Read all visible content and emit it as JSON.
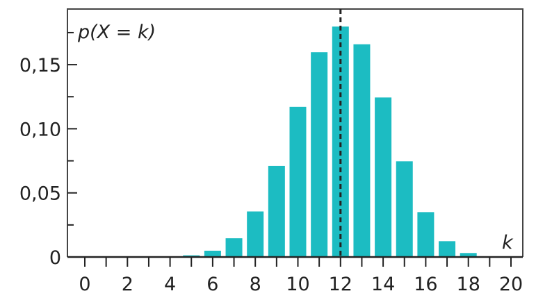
{
  "chart_data": {
    "type": "bar",
    "title": "",
    "ylabel": "p(X = k)",
    "xlabel": "k",
    "x": [
      0,
      1,
      2,
      3,
      4,
      5,
      6,
      7,
      8,
      9,
      10,
      11,
      12,
      13,
      14,
      15,
      16,
      17,
      18,
      19,
      20
    ],
    "values": [
      0,
      0,
      0,
      0,
      0.0003,
      0.0013,
      0.0049,
      0.0146,
      0.0355,
      0.071,
      0.1171,
      0.1597,
      0.1797,
      0.1659,
      0.1244,
      0.0746,
      0.035,
      0.0123,
      0.0031,
      0.0005,
      0.0
    ],
    "xlim": [
      0,
      20
    ],
    "ylim": [
      0,
      0.19
    ],
    "x_tick_labels": [
      "0",
      "2",
      "4",
      "6",
      "8",
      "10",
      "12",
      "14",
      "16",
      "18",
      "20"
    ],
    "y_tick_labels": [
      "0",
      "0,05",
      "0,10",
      "0,15"
    ],
    "y_tick_values": [
      0,
      0.05,
      0.1,
      0.15
    ],
    "mean_line": 12,
    "bar_color": "#1cbcc2",
    "grid": false
  }
}
